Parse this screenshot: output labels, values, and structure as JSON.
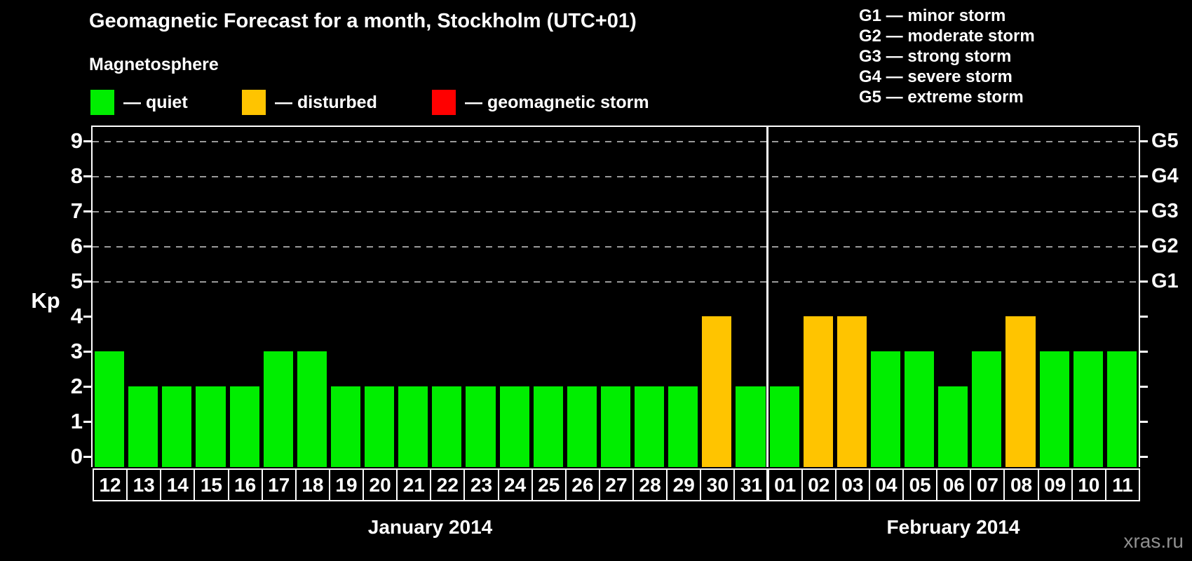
{
  "header": {
    "title": "Geomagnetic Forecast for a month, Stockholm (UTC+01)"
  },
  "legend": {
    "heading": "Magnetosphere",
    "items": [
      {
        "state": "quiet",
        "label": "— quiet"
      },
      {
        "state": "disturbed",
        "label": "— disturbed"
      },
      {
        "state": "storm",
        "label": "— geomagnetic storm"
      }
    ]
  },
  "g_legend": {
    "lines": [
      {
        "code": "G1",
        "text": "G1 — minor storm"
      },
      {
        "code": "G2",
        "text": "G2 — moderate storm"
      },
      {
        "code": "G3",
        "text": "G3 — strong storm"
      },
      {
        "code": "G4",
        "text": "G4 — severe storm"
      },
      {
        "code": "G5",
        "text": "G5 — extreme storm"
      }
    ]
  },
  "axes": {
    "y_label": "Kp",
    "y_ticks": [
      0,
      1,
      2,
      3,
      4,
      5,
      6,
      7,
      8,
      9
    ],
    "right_labels": [
      {
        "code": "G1",
        "kp": 5
      },
      {
        "code": "G2",
        "kp": 6
      },
      {
        "code": "G3",
        "kp": 7
      },
      {
        "code": "G4",
        "kp": 8
      },
      {
        "code": "G5",
        "kp": 9
      }
    ],
    "month_captions": [
      "January 2014",
      "February 2014"
    ]
  },
  "footer": {
    "watermark": "xras.ru"
  },
  "colors": {
    "background": "#000000",
    "frame": "#ffffff",
    "grid": "#9a9a9a",
    "text": "#ffffff",
    "watermark": "#8f8f8f",
    "quiet": "#00EE00",
    "disturbed": "#FFC400",
    "storm": "#FF0000"
  },
  "chart_data": {
    "type": "bar",
    "title": "Geomagnetic Forecast for a month, Stockholm (UTC+01)",
    "ylabel": "Kp",
    "ylim": [
      0,
      9
    ],
    "grid_kp_levels": [
      5,
      6,
      7,
      8,
      9
    ],
    "right_axis": {
      "G1": 5,
      "G2": 6,
      "G3": 7,
      "G4": 8,
      "G5": 9
    },
    "legend_position": "top-left",
    "months": [
      {
        "name": "January 2014",
        "days": [
          {
            "day": "12",
            "kp": 3,
            "state": "quiet"
          },
          {
            "day": "13",
            "kp": 2,
            "state": "quiet"
          },
          {
            "day": "14",
            "kp": 2,
            "state": "quiet"
          },
          {
            "day": "15",
            "kp": 2,
            "state": "quiet"
          },
          {
            "day": "16",
            "kp": 2,
            "state": "quiet"
          },
          {
            "day": "17",
            "kp": 3,
            "state": "quiet"
          },
          {
            "day": "18",
            "kp": 3,
            "state": "quiet"
          },
          {
            "day": "19",
            "kp": 2,
            "state": "quiet"
          },
          {
            "day": "20",
            "kp": 2,
            "state": "quiet"
          },
          {
            "day": "21",
            "kp": 2,
            "state": "quiet"
          },
          {
            "day": "22",
            "kp": 2,
            "state": "quiet"
          },
          {
            "day": "23",
            "kp": 2,
            "state": "quiet"
          },
          {
            "day": "24",
            "kp": 2,
            "state": "quiet"
          },
          {
            "day": "25",
            "kp": 2,
            "state": "quiet"
          },
          {
            "day": "26",
            "kp": 2,
            "state": "quiet"
          },
          {
            "day": "27",
            "kp": 2,
            "state": "quiet"
          },
          {
            "day": "28",
            "kp": 2,
            "state": "quiet"
          },
          {
            "day": "29",
            "kp": 2,
            "state": "quiet"
          },
          {
            "day": "30",
            "kp": 4,
            "state": "disturbed"
          },
          {
            "day": "31",
            "kp": 2,
            "state": "quiet"
          }
        ]
      },
      {
        "name": "February 2014",
        "days": [
          {
            "day": "01",
            "kp": 2,
            "state": "quiet"
          },
          {
            "day": "02",
            "kp": 4,
            "state": "disturbed"
          },
          {
            "day": "03",
            "kp": 4,
            "state": "disturbed"
          },
          {
            "day": "04",
            "kp": 3,
            "state": "quiet"
          },
          {
            "day": "05",
            "kp": 3,
            "state": "quiet"
          },
          {
            "day": "06",
            "kp": 2,
            "state": "quiet"
          },
          {
            "day": "07",
            "kp": 3,
            "state": "quiet"
          },
          {
            "day": "08",
            "kp": 4,
            "state": "disturbed"
          },
          {
            "day": "09",
            "kp": 3,
            "state": "quiet"
          },
          {
            "day": "10",
            "kp": 3,
            "state": "quiet"
          },
          {
            "day": "11",
            "kp": 3,
            "state": "quiet"
          }
        ]
      }
    ]
  }
}
